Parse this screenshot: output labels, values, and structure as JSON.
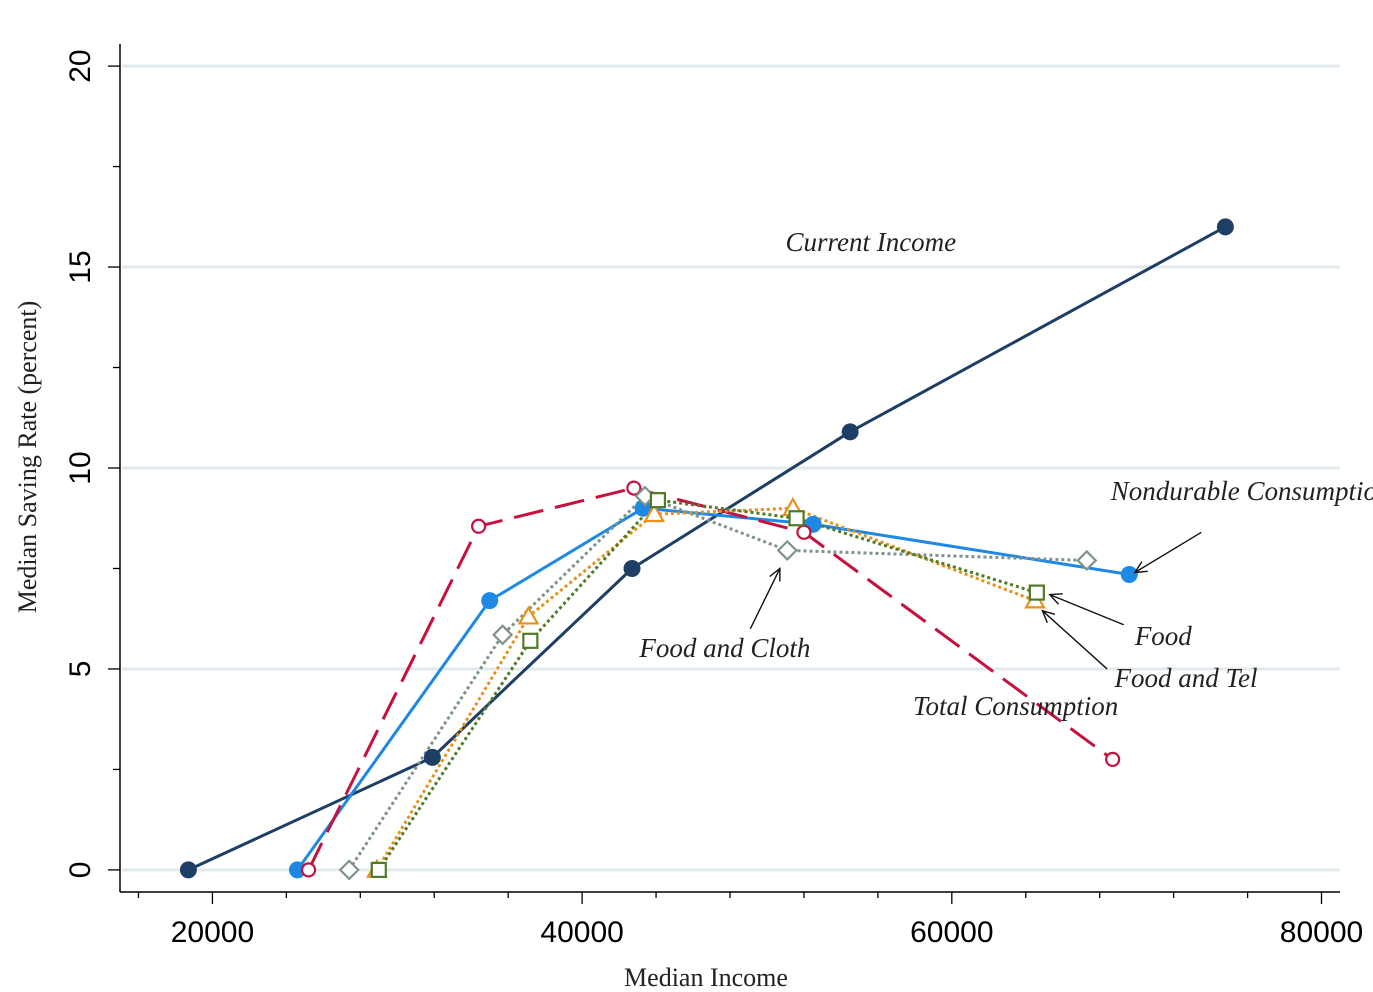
{
  "chart_data": {
    "type": "line",
    "xlabel": "Median Income",
    "ylabel": "Median Saving Rate (percent)",
    "xlim": [
      15000,
      81000
    ],
    "ylim": [
      -0.5,
      20.5
    ],
    "xticks": [
      20000,
      40000,
      60000,
      80000
    ],
    "yticks": [
      0,
      5,
      10,
      15,
      20
    ],
    "grid": "horizontal",
    "colors": {
      "grid": "#e3eaee",
      "current_income": "#1d3f66",
      "nondurable": "#1e88e5",
      "total": "#c8103e",
      "food_cloth": "#7f938a",
      "food_tel": "#e8901a",
      "food": "#4f7a28"
    },
    "series": [
      {
        "name": "Current Income",
        "color": "#1d3f66",
        "marker": "filled-circle",
        "dash": "solid",
        "x": [
          18700,
          31900,
          42700,
          54500,
          74800
        ],
        "y": [
          0,
          2.8,
          7.5,
          10.9,
          16.0
        ]
      },
      {
        "name": "Nondurable Consumption",
        "color": "#1e88e5",
        "marker": "filled-circle",
        "dash": "solid",
        "x": [
          24600,
          35000,
          43300,
          52500,
          69600
        ],
        "y": [
          0,
          6.7,
          9.0,
          8.6,
          7.35
        ]
      },
      {
        "name": "Total Consumption",
        "color": "#c8103e",
        "marker": "hollow-circle",
        "dash": "longdash",
        "x": [
          25200,
          34400,
          42800,
          52000,
          68700
        ],
        "y": [
          0,
          8.55,
          9.5,
          8.4,
          2.75
        ]
      },
      {
        "name": "Food and Cloth",
        "color": "#7f938a",
        "marker": "hollow-diamond",
        "dash": "dot",
        "x": [
          27400,
          35700,
          43400,
          51100,
          67300
        ],
        "y": [
          0,
          5.85,
          9.3,
          7.95,
          7.7
        ]
      },
      {
        "name": "Food and Tel",
        "color": "#e8901a",
        "marker": "hollow-triangle",
        "dash": "dot",
        "x": [
          28900,
          37100,
          43900,
          51400,
          64500
        ],
        "y": [
          0,
          6.3,
          8.85,
          9.0,
          6.7
        ]
      },
      {
        "name": "Food",
        "color": "#4f7a28",
        "marker": "hollow-square",
        "dash": "dot",
        "x": [
          29000,
          37200,
          44100,
          51600,
          64600
        ],
        "y": [
          0,
          5.7,
          9.2,
          8.75,
          6.9
        ]
      }
    ],
    "annotations": [
      {
        "text": "Current Income",
        "x": 51000,
        "y": 15.4,
        "arrow": false
      },
      {
        "text": "Nondurable Consumption",
        "x": 68600,
        "y": 9.2,
        "arrow": true,
        "arrow_from": [
          73500,
          8.4
        ],
        "arrow_to": [
          69900,
          7.4
        ]
      },
      {
        "text": "Food and Cloth",
        "x": 43100,
        "y": 5.3,
        "arrow": true,
        "arrow_from": [
          49100,
          6.0
        ],
        "arrow_to": [
          50700,
          7.5
        ]
      },
      {
        "text": "Food",
        "x": 69900,
        "y": 5.6,
        "arrow": true,
        "arrow_from": [
          69300,
          6.1
        ],
        "arrow_to": [
          65300,
          6.85
        ]
      },
      {
        "text": "Food and Tel",
        "x": 68800,
        "y": 4.55,
        "arrow": true,
        "arrow_from": [
          68400,
          5.0
        ],
        "arrow_to": [
          64900,
          6.45
        ]
      },
      {
        "text": "Total Consumption",
        "x": 57900,
        "y": 3.85,
        "arrow": false
      }
    ]
  }
}
